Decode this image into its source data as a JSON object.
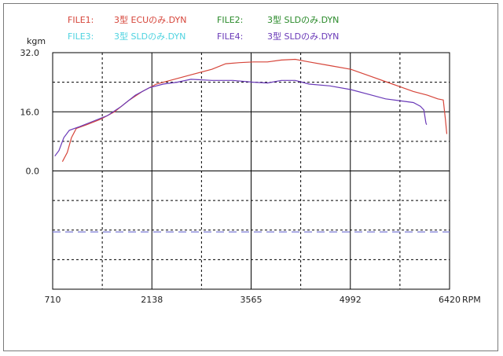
{
  "legend": [
    {
      "file": "FILE1:",
      "name": "3型 ECUのみ.DYN",
      "color": "#d6453a"
    },
    {
      "file": "FILE2:",
      "name": "3型 SLDのみ.DYN",
      "color": "#2a8a2a"
    },
    {
      "file": "FILE3:",
      "name": "3型 SLDのみ.DYN",
      "color": "#4fd3e0"
    },
    {
      "file": "FILE4:",
      "name": "3型 SLDのみ.DYN",
      "color": "#6a3ab8"
    }
  ],
  "chart_data": {
    "type": "line",
    "ylabel": "kgm",
    "xlabel": "RPM",
    "x_ticks": [
      "710",
      "2138",
      "3565",
      "4992",
      "6420"
    ],
    "y_ticks": [
      "32.0",
      "16.0",
      "0.0"
    ],
    "xlim": [
      710,
      6420
    ],
    "ylim": [
      -32,
      32
    ],
    "grid": true,
    "series": [
      {
        "name": "3型 ECUのみ.DYN",
        "color": "#d6453a",
        "points": [
          [
            850,
            2.5
          ],
          [
            920,
            5
          ],
          [
            980,
            9
          ],
          [
            1050,
            11.5
          ],
          [
            1200,
            12.5
          ],
          [
            1400,
            14
          ],
          [
            1600,
            16
          ],
          [
            1800,
            19
          ],
          [
            2000,
            21.5
          ],
          [
            2200,
            23.5
          ],
          [
            2400,
            24.5
          ],
          [
            2700,
            26
          ],
          [
            3000,
            27.5
          ],
          [
            3200,
            29
          ],
          [
            3400,
            29.3
          ],
          [
            3600,
            29.5
          ],
          [
            3800,
            29.5
          ],
          [
            4000,
            30
          ],
          [
            4200,
            30.2
          ],
          [
            4400,
            29.5
          ],
          [
            4700,
            28.5
          ],
          [
            5000,
            27.5
          ],
          [
            5300,
            25.5
          ],
          [
            5600,
            23.5
          ],
          [
            5900,
            21.5
          ],
          [
            6100,
            20.5
          ],
          [
            6250,
            19.5
          ],
          [
            6330,
            19.2
          ],
          [
            6360,
            14
          ],
          [
            6380,
            10
          ]
        ]
      },
      {
        "name": "3型 SLDのみ.DYN",
        "color": "#6a3ab8",
        "points": [
          [
            740,
            4
          ],
          [
            800,
            5.5
          ],
          [
            870,
            9
          ],
          [
            950,
            11
          ],
          [
            1100,
            12
          ],
          [
            1300,
            13.5
          ],
          [
            1500,
            15
          ],
          [
            1700,
            17.5
          ],
          [
            1900,
            20.5
          ],
          [
            2100,
            22.5
          ],
          [
            2300,
            23.5
          ],
          [
            2500,
            24
          ],
          [
            2700,
            24.8
          ],
          [
            3000,
            24.5
          ],
          [
            3300,
            24.5
          ],
          [
            3600,
            24
          ],
          [
            3800,
            23.8
          ],
          [
            4000,
            24.5
          ],
          [
            4200,
            24.5
          ],
          [
            4400,
            23.5
          ],
          [
            4700,
            23
          ],
          [
            5000,
            22
          ],
          [
            5300,
            20.5
          ],
          [
            5500,
            19.5
          ],
          [
            5700,
            19
          ],
          [
            5900,
            18.5
          ],
          [
            6000,
            17.5
          ],
          [
            6050,
            16.5
          ],
          [
            6080,
            13
          ],
          [
            6090,
            12.5
          ]
        ]
      }
    ],
    "reference_line": {
      "y": -16.5,
      "style": "dashed",
      "color": "#7b7bd6"
    }
  }
}
